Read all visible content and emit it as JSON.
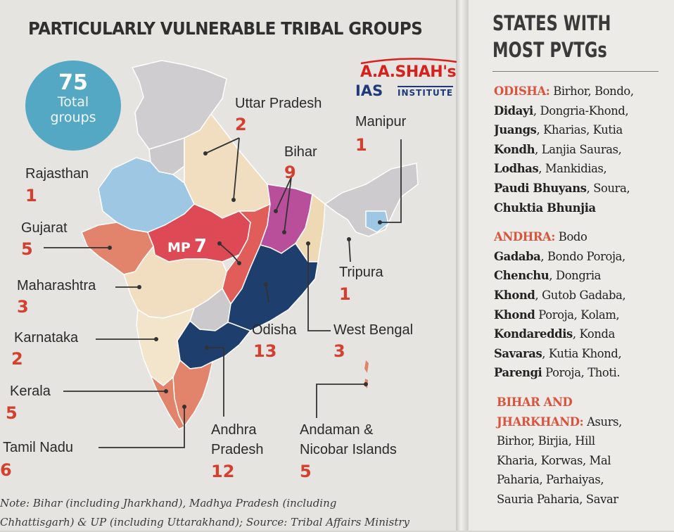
{
  "title": "PARTICULARLY VULNERABLE TRIBAL GROUPS",
  "total": {
    "number": "75",
    "line1": "Total",
    "line2": "groups"
  },
  "logo": {
    "line1": "A.A.SHAH's",
    "ias": "IAS",
    "institute": "INSTITUTE"
  },
  "colors": {
    "accent_count": "#d3402f",
    "bubble": "#55a8c4",
    "odisha": "#1e3f6e",
    "mp": "#dd4a55",
    "bihar": "#b94f9b",
    "gujarat": "#e2846b",
    "rajasthan": "#9ec7e3",
    "up": "#f1ddc0",
    "side_heading": "#d9533d"
  },
  "states": {
    "uttar_pradesh": {
      "name": "Uttar Pradesh",
      "count": "2"
    },
    "manipur": {
      "name": "Manipur",
      "count": "1"
    },
    "bihar": {
      "name": "Bihar",
      "count": "9"
    },
    "rajasthan": {
      "name": "Rajasthan",
      "count": "1"
    },
    "gujarat": {
      "name": "Gujarat",
      "count": "5"
    },
    "mp": {
      "name": "MP",
      "count": "7"
    },
    "maharashtra": {
      "name": "Maharashtra",
      "count": "3"
    },
    "tripura": {
      "name": "Tripura",
      "count": "1"
    },
    "karnataka": {
      "name": "Karnataka",
      "count": "2"
    },
    "odisha": {
      "name": "Odisha",
      "count": "13"
    },
    "west_bengal": {
      "name": "West Bengal",
      "count": "3"
    },
    "kerala": {
      "name": "Kerala",
      "count": "5"
    },
    "andhra": {
      "name_line1": "Andhra",
      "name_line2": "Pradesh",
      "count": "12"
    },
    "andaman": {
      "name_line1": "Andaman &",
      "name_line2": "Nicobar Islands",
      "count": "5"
    },
    "tamil_nadu": {
      "name": "Tamil Nadu",
      "count": "6"
    }
  },
  "note": {
    "line1": "Note: Bihar (including Jharkhand), Madhya Pradesh (including",
    "line2": "Chhattisgarh) & UP (including Uttarakhand); Source: Tribal Affairs Ministry"
  },
  "sidebar": {
    "title_line1": "STATES WITH",
    "title_line2": "MOST PVTGs",
    "odisha": {
      "heading": "ODISHA:",
      "l1": [
        {
          "b": "",
          "t": " Birhor, Bondo,"
        }
      ],
      "l2": [
        {
          "b": "Didayi",
          "t": ", Dongria-Khond,"
        }
      ],
      "l3": [
        {
          "b": "Juangs",
          "t": ", Kharias, Kutia"
        }
      ],
      "l4": [
        {
          "b": "Kondh",
          "t": ", Lanjia Sauras,"
        }
      ],
      "l5": [
        {
          "b": "Lodhas",
          "t": ", Mankidias,"
        }
      ],
      "l6": [
        {
          "b": "Paudi Bhuyans",
          "t": ", Soura,"
        }
      ],
      "l7": [
        {
          "b": "Chuktia Bhunjia",
          "t": ""
        }
      ]
    },
    "andhra": {
      "heading": "ANDHRA:",
      "l1_t": " Bodo",
      "l2_b": "Gadaba",
      "l2_t": ", Bondo Poroja,",
      "l3_b": "Chenchu",
      "l3_t": ", Dongria",
      "l4_b": "Khond",
      "l4_t": ", Gutob Gadaba,",
      "l5_b": "Khond",
      "l5_t": " Poroja, Kolam,",
      "l6_b": "Kondareddis",
      "l6_t": ", Konda",
      "l7_b": "Savaras",
      "l7_t": ", Kutia Khond,",
      "l8_b": "Parengi",
      "l8_t": " Poroja, Thoti."
    },
    "bihar": {
      "heading1": "BIHAR AND",
      "heading2": "JHARKHAND:",
      "l2_t": " Asurs,",
      "l3": "Birhor, Birjia, Hill",
      "l4": "Kharia, Korwas, Mal",
      "l5": "Paharia, Parhaiyas,",
      "l6": "Sauria Paharia, Savar"
    }
  }
}
